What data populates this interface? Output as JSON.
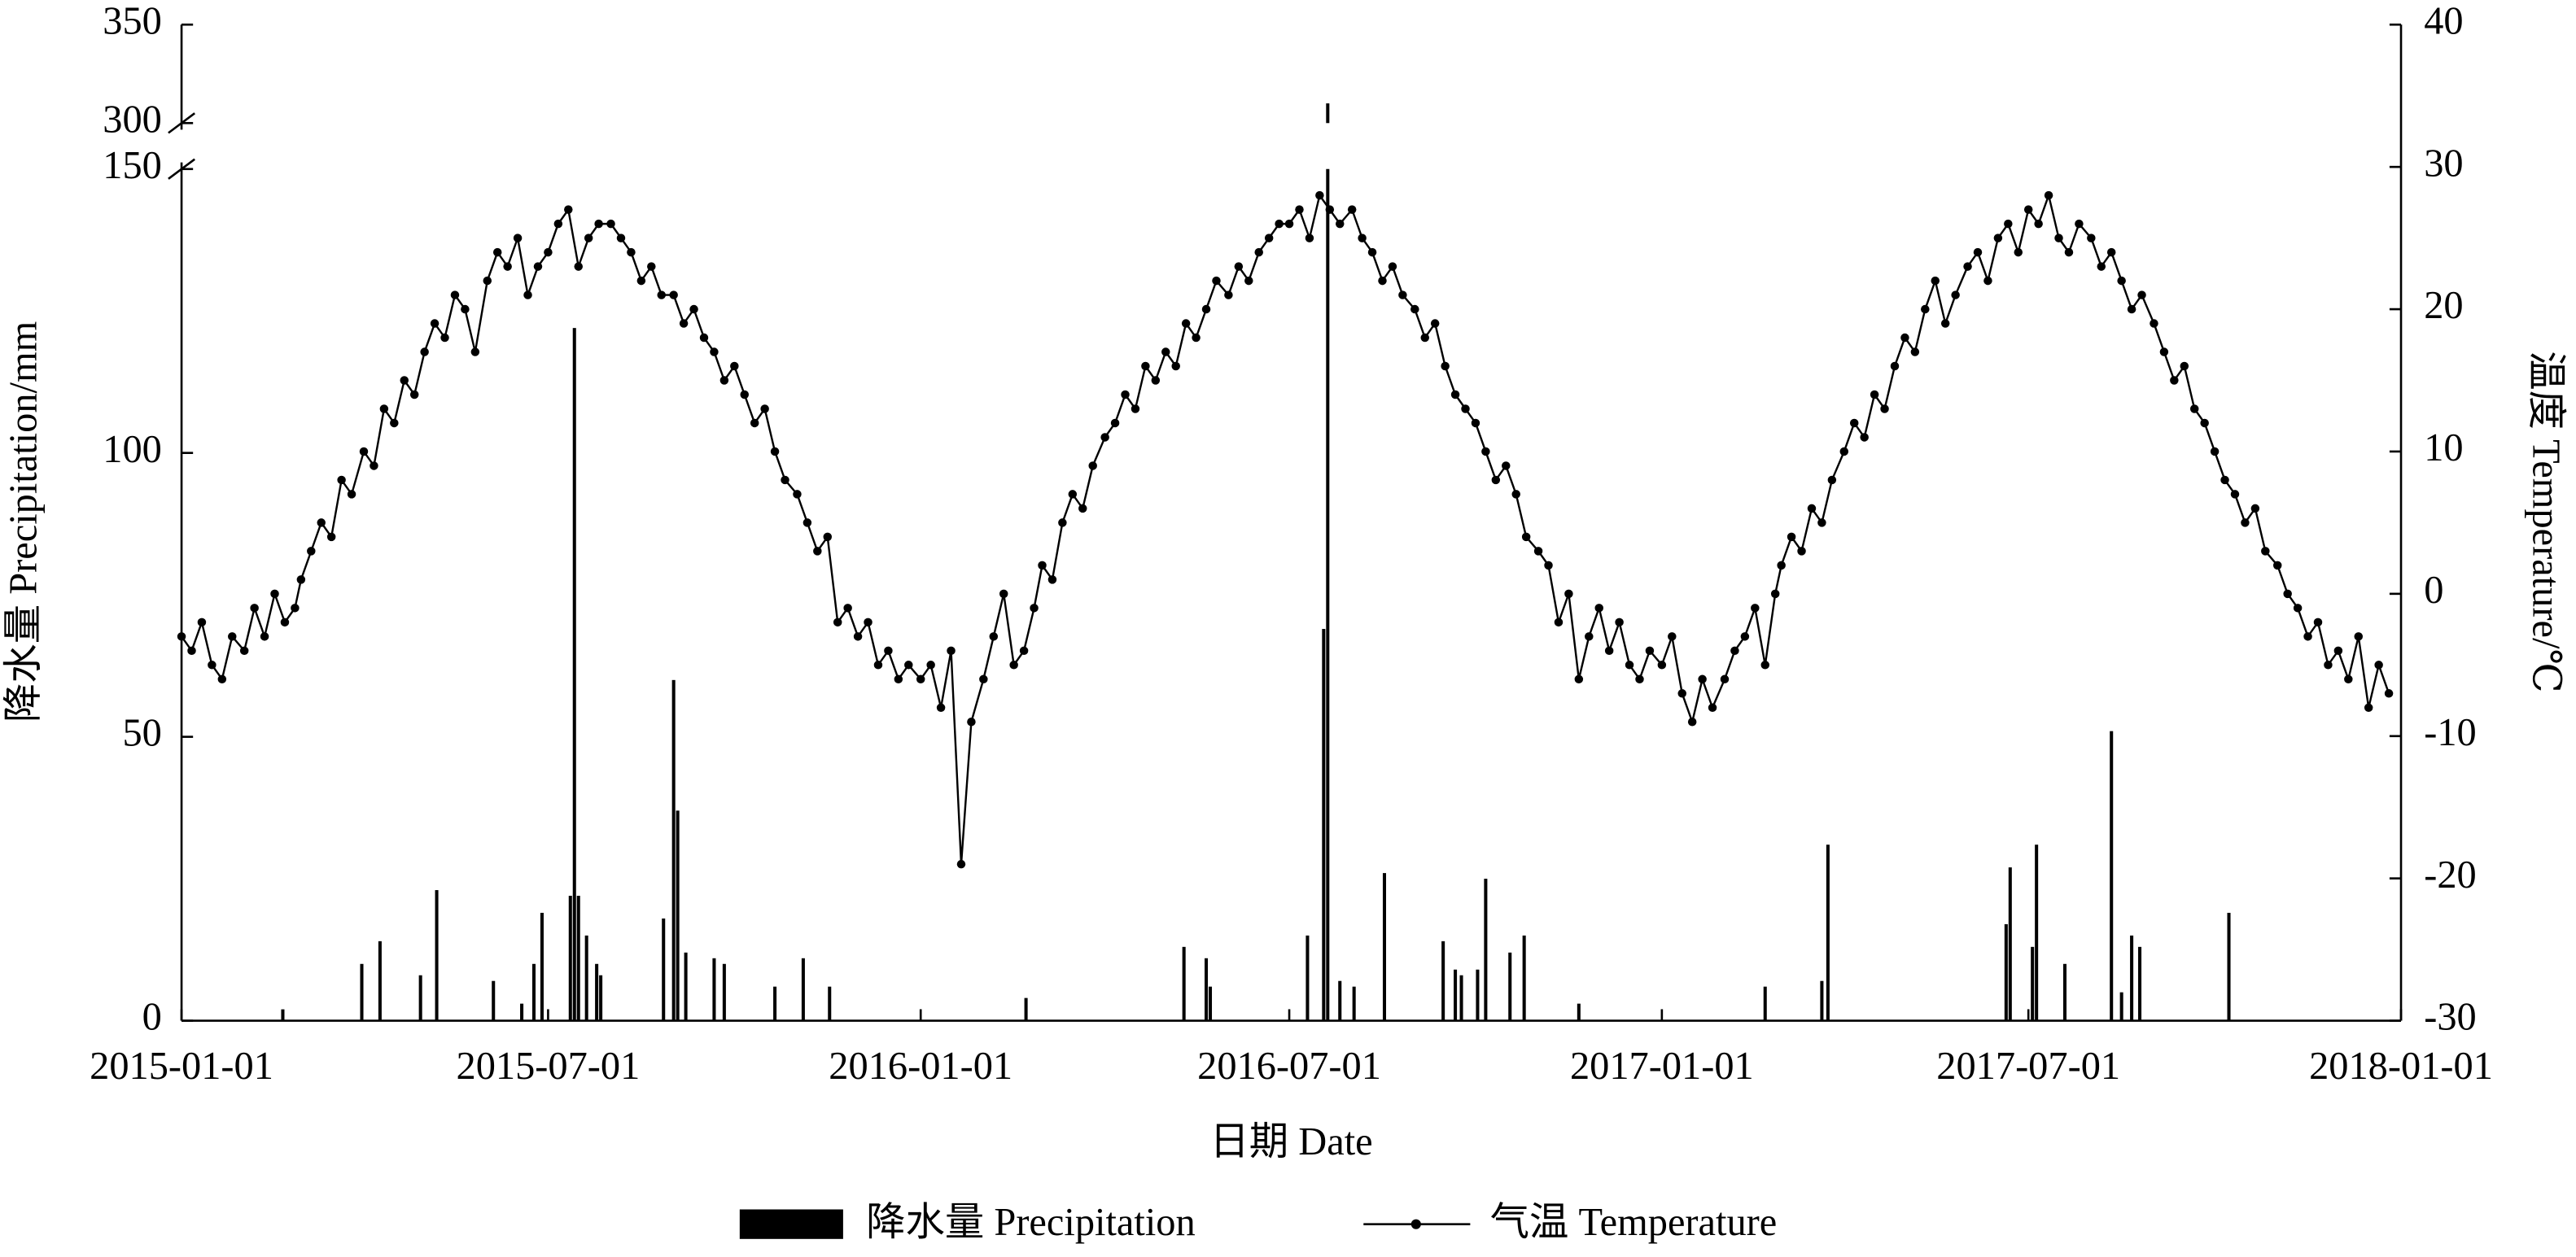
{
  "chart_data": {
    "type": "combo",
    "xlabel": "日期 Date",
    "ylabel": "降水量 Precipitation/mm",
    "y2label": "温度 Temperature/℃",
    "xlim": [
      "2015-01-01",
      "2018-01-01"
    ],
    "xticks": [
      "2015-01-01",
      "2015-07-01",
      "2016-01-01",
      "2016-07-01",
      "2017-01-01",
      "2017-07-01",
      "2018-01-01"
    ],
    "ylim": [
      0,
      350
    ],
    "y_break": [
      150,
      300
    ],
    "yticks": [
      0,
      50,
      100,
      150,
      300,
      350
    ],
    "y2lim": [
      -30,
      40
    ],
    "y2ticks": [
      -30,
      -20,
      -10,
      0,
      10,
      20,
      30,
      40
    ],
    "legend": "bottom",
    "series": [
      {
        "name": "降水量 Precipitation",
        "type": "bar",
        "color": "#000000",
        "x": [
          "2015-02-20",
          "2015-03-31",
          "2015-04-09",
          "2015-04-29",
          "2015-05-07",
          "2015-06-04",
          "2015-06-18",
          "2015-06-24",
          "2015-06-28",
          "2015-07-12",
          "2015-07-14",
          "2015-07-16",
          "2015-07-20",
          "2015-07-25",
          "2015-07-27",
          "2015-08-27",
          "2015-09-01",
          "2015-09-03",
          "2015-09-07",
          "2015-09-21",
          "2015-09-26",
          "2015-10-21",
          "2015-11-04",
          "2015-11-17",
          "2016-02-22",
          "2016-05-10",
          "2016-05-21",
          "2016-05-23",
          "2016-07-10",
          "2016-07-18",
          "2016-07-20",
          "2016-07-26",
          "2016-08-02",
          "2016-08-17",
          "2016-09-15",
          "2016-09-21",
          "2016-09-24",
          "2016-10-02",
          "2016-10-06",
          "2016-10-18",
          "2016-10-25",
          "2016-11-21",
          "2017-02-21",
          "2017-03-21",
          "2017-03-24",
          "2017-06-20",
          "2017-06-22",
          "2017-07-03",
          "2017-07-05",
          "2017-07-19",
          "2017-08-11",
          "2017-08-16",
          "2017-08-21",
          "2017-08-25",
          "2017-10-08"
        ],
        "values": [
          2,
          10,
          14,
          8,
          23,
          7,
          3,
          10,
          19,
          22,
          122,
          22,
          15,
          10,
          8,
          18,
          60,
          37,
          12,
          11,
          10,
          6,
          11,
          6,
          4,
          13,
          11,
          6,
          15,
          69,
          310,
          7,
          6,
          26,
          14,
          9,
          8,
          9,
          25,
          12,
          15,
          3,
          6,
          7,
          31,
          17,
          27,
          13,
          31,
          10,
          51,
          5,
          15,
          13,
          19
        ]
      },
      {
        "name": "气温 Temperature",
        "type": "line",
        "axis": "y2",
        "color": "#000000",
        "x": [
          "2015-01-01",
          "2015-01-06",
          "2015-01-11",
          "2015-01-16",
          "2015-01-21",
          "2015-01-26",
          "2015-02-01",
          "2015-02-06",
          "2015-02-11",
          "2015-02-16",
          "2015-02-21",
          "2015-02-26",
          "2015-03-01",
          "2015-03-06",
          "2015-03-11",
          "2015-03-16",
          "2015-03-21",
          "2015-03-26",
          "2015-04-01",
          "2015-04-06",
          "2015-04-11",
          "2015-04-16",
          "2015-04-21",
          "2015-04-26",
          "2015-05-01",
          "2015-05-06",
          "2015-05-11",
          "2015-05-16",
          "2015-05-21",
          "2015-05-26",
          "2015-06-01",
          "2015-06-06",
          "2015-06-11",
          "2015-06-16",
          "2015-06-21",
          "2015-06-26",
          "2015-07-01",
          "2015-07-06",
          "2015-07-11",
          "2015-07-16",
          "2015-07-21",
          "2015-07-26",
          "2015-08-01",
          "2015-08-06",
          "2015-08-11",
          "2015-08-16",
          "2015-08-21",
          "2015-08-26",
          "2015-09-01",
          "2015-09-06",
          "2015-09-11",
          "2015-09-16",
          "2015-09-21",
          "2015-09-26",
          "2015-10-01",
          "2015-10-06",
          "2015-10-11",
          "2015-10-16",
          "2015-10-21",
          "2015-10-26",
          "2015-11-01",
          "2015-11-06",
          "2015-11-11",
          "2015-11-16",
          "2015-11-21",
          "2015-11-26",
          "2015-12-01",
          "2015-12-06",
          "2015-12-11",
          "2015-12-16",
          "2015-12-21",
          "2015-12-26",
          "2016-01-01",
          "2016-01-06",
          "2016-01-11",
          "2016-01-16",
          "2016-01-21",
          "2016-01-26",
          "2016-02-01",
          "2016-02-06",
          "2016-02-11",
          "2016-02-16",
          "2016-02-21",
          "2016-02-26",
          "2016-03-01",
          "2016-03-06",
          "2016-03-11",
          "2016-03-16",
          "2016-03-21",
          "2016-03-26",
          "2016-04-01",
          "2016-04-06",
          "2016-04-11",
          "2016-04-16",
          "2016-04-21",
          "2016-04-26",
          "2016-05-01",
          "2016-05-06",
          "2016-05-11",
          "2016-05-16",
          "2016-05-21",
          "2016-05-26",
          "2016-06-01",
          "2016-06-06",
          "2016-06-11",
          "2016-06-16",
          "2016-06-21",
          "2016-06-26",
          "2016-07-01",
          "2016-07-06",
          "2016-07-11",
          "2016-07-16",
          "2016-07-21",
          "2016-07-26",
          "2016-08-01",
          "2016-08-06",
          "2016-08-11",
          "2016-08-16",
          "2016-08-21",
          "2016-08-26",
          "2016-09-01",
          "2016-09-06",
          "2016-09-11",
          "2016-09-16",
          "2016-09-21",
          "2016-09-26",
          "2016-10-01",
          "2016-10-06",
          "2016-10-11",
          "2016-10-16",
          "2016-10-21",
          "2016-10-26",
          "2016-11-01",
          "2016-11-06",
          "2016-11-11",
          "2016-11-16",
          "2016-11-21",
          "2016-11-26",
          "2016-12-01",
          "2016-12-06",
          "2016-12-11",
          "2016-12-16",
          "2016-12-21",
          "2016-12-26",
          "2017-01-01",
          "2017-01-06",
          "2017-01-11",
          "2017-01-16",
          "2017-01-21",
          "2017-01-26",
          "2017-02-01",
          "2017-02-06",
          "2017-02-11",
          "2017-02-16",
          "2017-02-21",
          "2017-02-26",
          "2017-03-01",
          "2017-03-06",
          "2017-03-11",
          "2017-03-16",
          "2017-03-21",
          "2017-03-26",
          "2017-04-01",
          "2017-04-06",
          "2017-04-11",
          "2017-04-16",
          "2017-04-21",
          "2017-04-26",
          "2017-05-01",
          "2017-05-06",
          "2017-05-11",
          "2017-05-16",
          "2017-05-21",
          "2017-05-26",
          "2017-06-01",
          "2017-06-06",
          "2017-06-11",
          "2017-06-16",
          "2017-06-21",
          "2017-06-26",
          "2017-07-01",
          "2017-07-06",
          "2017-07-11",
          "2017-07-16",
          "2017-07-21",
          "2017-07-26",
          "2017-08-01",
          "2017-08-06",
          "2017-08-11",
          "2017-08-16",
          "2017-08-21",
          "2017-08-26",
          "2017-09-01",
          "2017-09-06",
          "2017-09-11",
          "2017-09-16",
          "2017-09-21",
          "2017-09-26",
          "2017-10-01",
          "2017-10-06",
          "2017-10-11",
          "2017-10-16",
          "2017-10-21",
          "2017-10-26",
          "2017-11-01",
          "2017-11-06",
          "2017-11-11",
          "2017-11-16",
          "2017-11-21",
          "2017-11-26",
          "2017-12-01",
          "2017-12-06",
          "2017-12-11",
          "2017-12-16",
          "2017-12-21",
          "2017-12-26"
        ],
        "values": [
          -3,
          -4,
          -2,
          -5,
          -6,
          -3,
          -4,
          -1,
          -3,
          0,
          -2,
          -1,
          1,
          3,
          5,
          4,
          8,
          7,
          10,
          9,
          13,
          12,
          15,
          14,
          17,
          19,
          18,
          21,
          20,
          17,
          22,
          24,
          23,
          25,
          21,
          23,
          24,
          26,
          27,
          23,
          25,
          26,
          26,
          25,
          24,
          22,
          23,
          21,
          21,
          19,
          20,
          18,
          17,
          15,
          16,
          14,
          12,
          13,
          10,
          8,
          7,
          5,
          3,
          4,
          -2,
          -1,
          -3,
          -2,
          -5,
          -4,
          -6,
          -5,
          -6,
          -5,
          -8,
          -4,
          -19,
          -9,
          -6,
          -3,
          0,
          -5,
          -4,
          -1,
          2,
          1,
          5,
          7,
          6,
          9,
          11,
          12,
          14,
          13,
          16,
          15,
          17,
          16,
          19,
          18,
          20,
          22,
          21,
          23,
          22,
          24,
          25,
          26,
          26,
          27,
          25,
          28,
          27,
          26,
          27,
          25,
          24,
          22,
          23,
          21,
          20,
          18,
          19,
          16,
          14,
          13,
          12,
          10,
          8,
          9,
          7,
          4,
          3,
          2,
          -2,
          0,
          -6,
          -3,
          -1,
          -4,
          -2,
          -5,
          -6,
          -4,
          -5,
          -3,
          -7,
          -9,
          -6,
          -8,
          -6,
          -4,
          -3,
          -1,
          -5,
          0,
          2,
          4,
          3,
          6,
          5,
          8,
          10,
          12,
          11,
          14,
          13,
          16,
          18,
          17,
          20,
          22,
          19,
          21,
          23,
          24,
          22,
          25,
          26,
          24,
          27,
          26,
          28,
          25,
          24,
          26,
          25,
          23,
          24,
          22,
          20,
          21,
          19,
          17,
          15,
          16,
          13,
          12,
          10,
          8,
          7,
          5,
          6,
          3,
          2,
          0,
          -1,
          -3,
          -2,
          -5,
          -4,
          -6,
          -3,
          -8,
          -5,
          -7
        ]
      }
    ]
  }
}
